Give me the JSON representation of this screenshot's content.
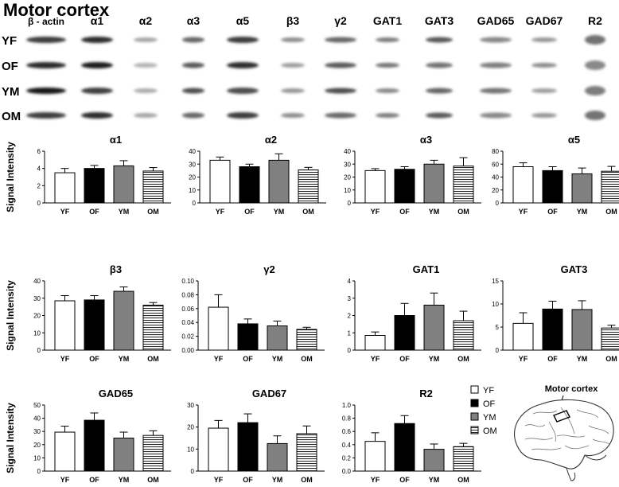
{
  "title": "Motor cortex",
  "blot": {
    "columns": [
      "β - actin",
      "α1",
      "α2",
      "α3",
      "α5",
      "β3",
      "γ2",
      "GAT1",
      "GAT3",
      "GAD65",
      "GAD67",
      "R2"
    ],
    "rows": [
      "YF",
      "OF",
      "YM",
      "OM"
    ]
  },
  "ylabel": "Signal Intensity",
  "legend": {
    "items": [
      {
        "label": "YF",
        "fill": "#ffffff",
        "pattern": "none"
      },
      {
        "label": "OF",
        "fill": "#000000",
        "pattern": "none"
      },
      {
        "label": "YM",
        "fill": "#808080",
        "pattern": "none"
      },
      {
        "label": "OM",
        "fill": "#ffffff",
        "pattern": "hlines"
      }
    ]
  },
  "brain": {
    "label": "Motor cortex"
  },
  "chart_data": [
    {
      "type": "bar",
      "title": "α1",
      "categories": [
        "YF",
        "OF",
        "YM",
        "OM"
      ],
      "values": [
        3.5,
        4.0,
        4.3,
        3.7
      ],
      "errors": [
        0.5,
        0.35,
        0.6,
        0.4
      ],
      "ylim": [
        0,
        6
      ],
      "yticks": [
        0,
        2,
        4,
        6
      ],
      "ylabel": "Signal Intensity"
    },
    {
      "type": "bar",
      "title": "α2",
      "categories": [
        "YF",
        "OF",
        "YM",
        "OM"
      ],
      "values": [
        33,
        28,
        33,
        25.5
      ],
      "errors": [
        2.5,
        2,
        5,
        2
      ],
      "ylim": [
        0,
        40
      ],
      "yticks": [
        0,
        10,
        20,
        30,
        40
      ],
      "ylabel": ""
    },
    {
      "type": "bar",
      "title": "α3",
      "categories": [
        "YF",
        "OF",
        "YM",
        "OM"
      ],
      "values": [
        25,
        26,
        30,
        28.5
      ],
      "errors": [
        1.5,
        2,
        3,
        6.5
      ],
      "ylim": [
        0,
        40
      ],
      "yticks": [
        0,
        10,
        20,
        30,
        40
      ],
      "ylabel": ""
    },
    {
      "type": "bar",
      "title": "α5",
      "categories": [
        "YF",
        "OF",
        "YM",
        "OM"
      ],
      "values": [
        56,
        50,
        45,
        49
      ],
      "errors": [
        6,
        6,
        9,
        7.5
      ],
      "ylim": [
        0,
        80
      ],
      "yticks": [
        0,
        20,
        40,
        60,
        80
      ],
      "ylabel": ""
    },
    {
      "type": "bar",
      "title": "β3",
      "categories": [
        "YF",
        "OF",
        "YM",
        "OM"
      ],
      "values": [
        28.5,
        29,
        34,
        26
      ],
      "errors": [
        3,
        2.5,
        2.5,
        1.5
      ],
      "ylim": [
        0,
        40
      ],
      "yticks": [
        0,
        10,
        20,
        30,
        40
      ],
      "ylabel": "Signal Intensity"
    },
    {
      "type": "bar",
      "title": "γ2",
      "categories": [
        "YF",
        "OF",
        "YM",
        "OM"
      ],
      "values": [
        0.062,
        0.038,
        0.035,
        0.03
      ],
      "errors": [
        0.018,
        0.007,
        0.007,
        0.003
      ],
      "ylim": [
        0,
        0.1
      ],
      "yticks": [
        0,
        0.02,
        0.04,
        0.06,
        0.08,
        0.1
      ],
      "yticklabels": [
        "0.00",
        "0.02",
        "0.04",
        "0.06",
        "0.08",
        "0.10"
      ],
      "ylabel": ""
    },
    {
      "type": "bar",
      "title": "GAT1",
      "categories": [
        "YF",
        "OF",
        "YM",
        "OM"
      ],
      "values": [
        0.85,
        2.0,
        2.6,
        1.7
      ],
      "errors": [
        0.2,
        0.7,
        0.7,
        0.55
      ],
      "ylim": [
        0,
        4
      ],
      "yticks": [
        0,
        1,
        2,
        3,
        4
      ],
      "ylabel": ""
    },
    {
      "type": "bar",
      "title": "GAT3",
      "categories": [
        "YF",
        "OF",
        "YM",
        "OM"
      ],
      "values": [
        5.8,
        8.9,
        8.8,
        4.8
      ],
      "errors": [
        2.3,
        1.7,
        1.9,
        0.6
      ],
      "ylim": [
        0,
        15
      ],
      "yticks": [
        0,
        5,
        10,
        15
      ],
      "ylabel": ""
    },
    {
      "type": "bar",
      "title": "GAD65",
      "categories": [
        "YF",
        "OF",
        "YM",
        "OM"
      ],
      "values": [
        29.5,
        38.5,
        25,
        27
      ],
      "errors": [
        4.5,
        5.5,
        4.5,
        3.5
      ],
      "ylim": [
        0,
        50
      ],
      "yticks": [
        0,
        10,
        20,
        30,
        40,
        50
      ],
      "ylabel": "Signal Intensity"
    },
    {
      "type": "bar",
      "title": "GAD67",
      "categories": [
        "YF",
        "OF",
        "YM",
        "OM"
      ],
      "values": [
        19.5,
        22,
        12.5,
        17
      ],
      "errors": [
        3.5,
        4,
        3.5,
        3.5
      ],
      "ylim": [
        0,
        30
      ],
      "yticks": [
        0,
        10,
        20,
        30
      ],
      "ylabel": ""
    },
    {
      "type": "bar",
      "title": "R2",
      "categories": [
        "YF",
        "OF",
        "YM",
        "OM"
      ],
      "values": [
        0.45,
        0.72,
        0.33,
        0.37
      ],
      "errors": [
        0.13,
        0.12,
        0.08,
        0.05
      ],
      "ylim": [
        0,
        1.0
      ],
      "yticks": [
        0,
        0.2,
        0.4,
        0.6,
        0.8,
        1.0
      ],
      "yticklabels": [
        "0.0",
        "0.2",
        "0.4",
        "0.6",
        "0.8",
        "1.0"
      ],
      "ylabel": ""
    }
  ]
}
